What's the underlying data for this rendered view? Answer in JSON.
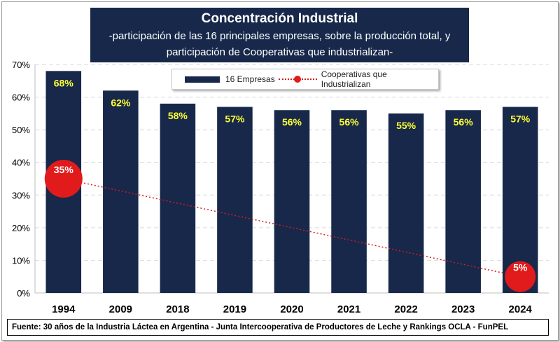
{
  "colors": {
    "bar": "#17284a",
    "bar_label": "#ffff33",
    "coop_line": "#d41c1c",
    "coop_marker": "#e11b1b",
    "grid": "#d9d9d9"
  },
  "chart_data": {
    "type": "bar",
    "title": "Concentración Industrial",
    "subtitle": "-participación de las 16 principales empresas, sobre la producción total, y participación de Cooperativas que industrializan-",
    "categories": [
      "1994",
      "2009",
      "2018",
      "2019",
      "2020",
      "2021",
      "2022",
      "2023",
      "2024"
    ],
    "series": [
      {
        "name": "16 Empresas",
        "type": "bar",
        "values": [
          68,
          62,
          58,
          57,
          56,
          56,
          55,
          56,
          57
        ],
        "labels": [
          "68%",
          "62%",
          "58%",
          "57%",
          "56%",
          "56%",
          "55%",
          "56%",
          "57%"
        ]
      },
      {
        "name": "Cooperativas que Industrializan",
        "type": "line",
        "points": [
          {
            "x": "1994",
            "value": 35,
            "label": "35%"
          },
          {
            "x": "2024",
            "value": 5,
            "label": "5%"
          }
        ]
      }
    ],
    "ylim": [
      0,
      70
    ],
    "yticks": [
      "0%",
      "10%",
      "20%",
      "30%",
      "40%",
      "50%",
      "60%",
      "70%"
    ],
    "ytick_values": [
      0,
      10,
      20,
      30,
      40,
      50,
      60,
      70
    ],
    "grid": true,
    "legend_position": "top-center"
  },
  "footer": {
    "source": "Fuente: 30 años de la Industria Láctea en Argentina - Junta Intercooperativa de Productores de Leche y Rankings OCLA - FunPEL"
  }
}
